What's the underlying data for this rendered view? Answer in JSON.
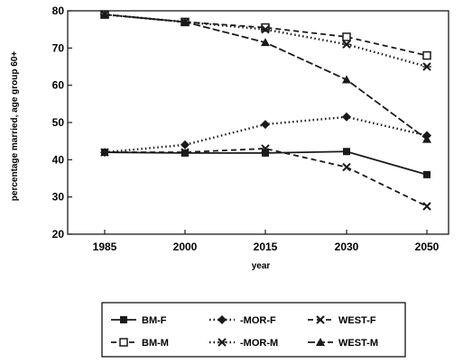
{
  "chart_data": {
    "type": "line",
    "title": "",
    "xlabel": "year",
    "ylabel": "percentage married, age group 60+",
    "categories": [
      "1985",
      "2000",
      "2015",
      "2030",
      "2050"
    ],
    "ylim": [
      20,
      80
    ],
    "yticks": [
      "20",
      "30",
      "40",
      "50",
      "60",
      "70",
      "80"
    ],
    "grid": false,
    "legend_position": "bottom",
    "series": [
      {
        "name": "BM-F",
        "values": [
          42,
          41.8,
          41.8,
          42.2,
          36
        ],
        "dash": "solid",
        "marker": "square-filled"
      },
      {
        "name": "MOR-F",
        "values": [
          42,
          44,
          49.5,
          51.5,
          46.5
        ],
        "dash": "dotted",
        "marker": "diamond"
      },
      {
        "name": "WEST-F",
        "values": [
          42,
          42,
          43,
          38,
          27.5
        ],
        "dash": "dashed",
        "marker": "x-cross"
      },
      {
        "name": "BM-M",
        "values": [
          79,
          77,
          75.5,
          73,
          68
        ],
        "dash": "dashed",
        "marker": "square-open"
      },
      {
        "name": "MOR-M",
        "values": [
          79,
          77,
          75,
          71,
          65
        ],
        "dash": "dotted",
        "marker": "x-cross-bar"
      },
      {
        "name": "WEST-M",
        "values": [
          79,
          77,
          71.5,
          61.5,
          45.5
        ],
        "dash": "longdash",
        "marker": "triangle"
      }
    ],
    "legend_order": [
      "BM-F",
      "MOR-F",
      "WEST-F",
      "BM-M",
      "MOR-M",
      "WEST-M"
    ],
    "legend_display": [
      "BM-F",
      "-MOR-F",
      "WEST-F",
      "BM-M",
      "-MOR-M",
      "WEST-M"
    ],
    "line_color": "#1a1a1a"
  }
}
